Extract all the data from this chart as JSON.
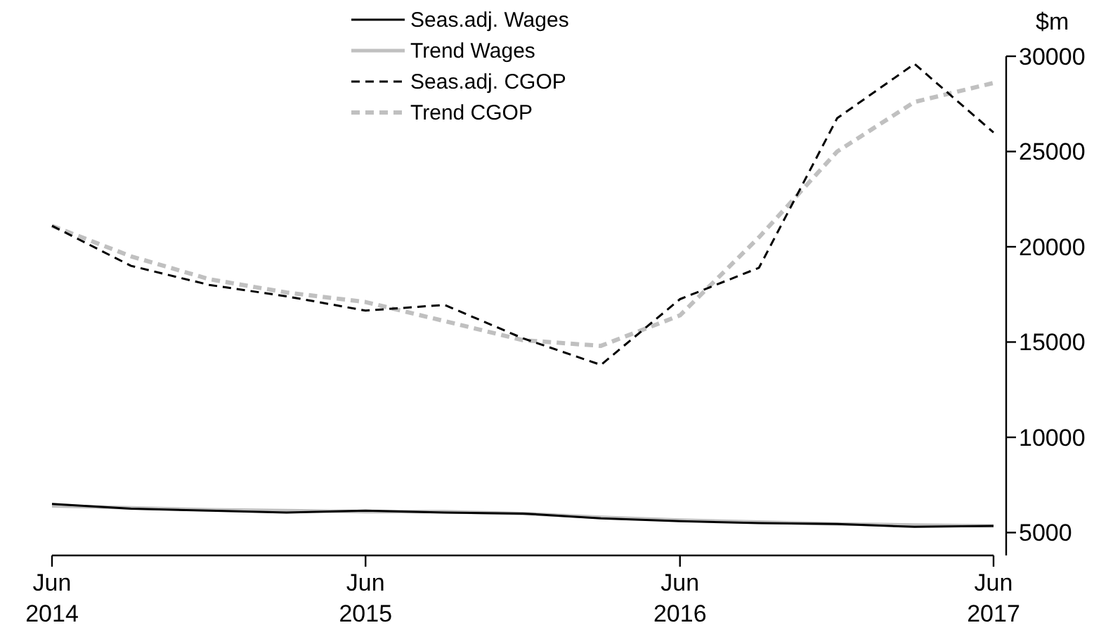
{
  "chart_data": {
    "type": "line",
    "ylabel": "$m",
    "x": [
      "2014-06",
      "2014-09",
      "2014-12",
      "2015-03",
      "2015-06",
      "2015-09",
      "2015-12",
      "2016-03",
      "2016-06",
      "2016-09",
      "2016-12",
      "2017-03",
      "2017-06"
    ],
    "series": [
      {
        "name": "Seas.adj. Wages",
        "color": "#000000",
        "line_style": "solid",
        "values": [
          6500,
          6250,
          6150,
          6050,
          6150,
          6050,
          6000,
          5750,
          5600,
          5500,
          5450,
          5300,
          5350
        ]
      },
      {
        "name": "Trend Wages",
        "color": "#c0c0c0",
        "line_style": "solid",
        "values": [
          6400,
          6300,
          6200,
          6150,
          6100,
          6100,
          6000,
          5800,
          5650,
          5550,
          5450,
          5400,
          5350
        ]
      },
      {
        "name": "Seas.adj. CGOP",
        "color": "#000000",
        "line_style": "dashed",
        "values": [
          21100,
          19000,
          18000,
          17400,
          16650,
          16950,
          15200,
          13800,
          17250,
          18900,
          26750,
          29600,
          26000
        ]
      },
      {
        "name": "Trend CGOP",
        "color": "#c0c0c0",
        "line_style": "dashed",
        "values": [
          21100,
          19500,
          18300,
          17600,
          17100,
          16100,
          15100,
          14800,
          16400,
          20500,
          25000,
          27600,
          28600
        ]
      }
    ],
    "xlim": [
      "2014-06",
      "2017-06"
    ],
    "xticks": [
      {
        "value": "2014-06",
        "label": "Jun 2014"
      },
      {
        "value": "2015-06",
        "label": "Jun 2015"
      },
      {
        "value": "2016-06",
        "label": "Jun 2016"
      },
      {
        "value": "2017-06",
        "label": "Jun 2017"
      }
    ],
    "ylim": [
      3800,
      30000
    ],
    "yticks": [
      5000,
      10000,
      15000,
      20000,
      25000,
      30000
    ],
    "grid": false,
    "legend": "top"
  }
}
